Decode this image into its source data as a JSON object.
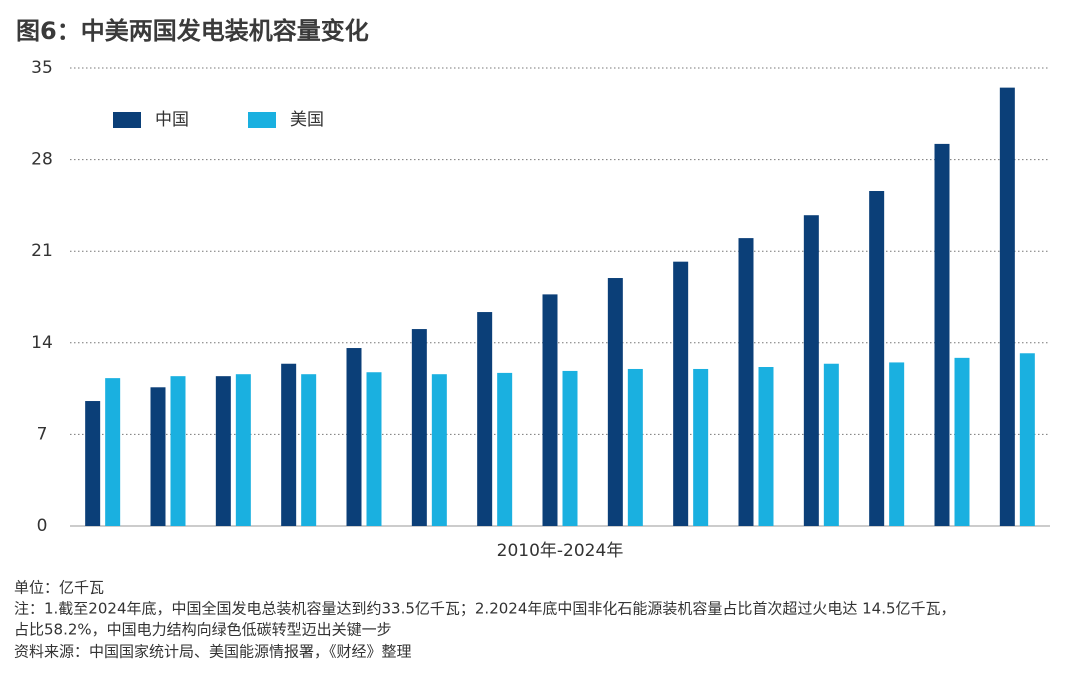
{
  "chart_data": {
    "type": "bar",
    "title": "图6：中美两国发电装机容量变化",
    "x_label": "2010年-2024年",
    "unit": "单位：亿千瓦",
    "notes": [
      "注：1.截至2024年底，中国全国发电总装机容量达到约33.5亿千瓦；2.2024年底中国非化石能源装机容量占比首次超过火电达 14.5亿千瓦，",
      "占比58.2%，中国电力结构向绿色低碳转型迈出关键一步"
    ],
    "source": "资料来源：中国国家统计局、美国能源情报署，《财经》整理",
    "categories": [
      null,
      null,
      null,
      null,
      null,
      null,
      null,
      null,
      null,
      null,
      null,
      null,
      null,
      null,
      null
    ],
    "series": [
      {
        "name": "中国",
        "color": "#0b3f78",
        "values": [
          9.55,
          10.6,
          11.45,
          12.4,
          13.6,
          15.05,
          16.35,
          17.7,
          18.95,
          20.2,
          22.0,
          23.75,
          25.6,
          29.2,
          33.5
        ]
      },
      {
        "name": "美国",
        "color": "#1ab0e0",
        "values": [
          11.3,
          11.45,
          11.6,
          11.6,
          11.75,
          11.6,
          11.7,
          11.85,
          12.0,
          12.0,
          12.15,
          12.4,
          12.5,
          12.85,
          13.2
        ]
      }
    ],
    "ylim": [
      0,
      35
    ],
    "yticks": [
      0,
      7,
      14,
      21,
      28,
      35
    ],
    "grid": true,
    "legend": "upper left"
  }
}
